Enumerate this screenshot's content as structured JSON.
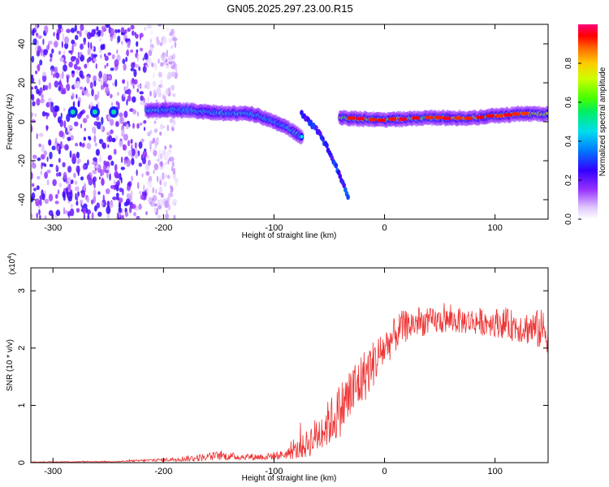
{
  "title": "GN05.2025.297.23.00.R15",
  "chart_data": [
    {
      "type": "heatmap",
      "title": "GN05.2025.297.23.00.R15",
      "xlabel": "Height of straight line (km)",
      "ylabel": "Frequency (Hz)",
      "xlim": [
        -320,
        148
      ],
      "ylim": [
        -50,
        50
      ],
      "xticks": [
        -300,
        -200,
        -100,
        0,
        100
      ],
      "xtick_labels": [
        "-300",
        "-200",
        "-100",
        "0",
        "100"
      ],
      "yticks": [
        -40,
        -20,
        0,
        20,
        40
      ],
      "ytick_labels": [
        "-40",
        "-20",
        "0",
        "20",
        "40"
      ],
      "colorbar": {
        "label": "Normalized spectral amplitude",
        "range": [
          0,
          1
        ],
        "ticks": [
          0.0,
          0.2,
          0.4,
          0.6,
          0.8
        ],
        "tick_labels": [
          "0.0",
          "0.2",
          "0.4",
          "0.6",
          "0.8"
        ]
      },
      "features": [
        {
          "name": "noise-region",
          "x_range": [
            -320,
            -200
          ],
          "y_range": [
            -50,
            50
          ],
          "amplitude": 0.15
        },
        {
          "name": "main-track-left",
          "points": [
            [
              -215,
              6
            ],
            [
              -180,
              6
            ],
            [
              -150,
              4.5
            ],
            [
              -120,
              4
            ],
            [
              -100,
              0
            ],
            [
              -85,
              -4
            ],
            [
              -75,
              -8
            ]
          ],
          "amplitude": 0.45
        },
        {
          "name": "main-track-right",
          "points": [
            [
              -40,
              2
            ],
            [
              0,
              1
            ],
            [
              40,
              2
            ],
            [
              80,
              2
            ],
            [
              120,
              4
            ],
            [
              148,
              4
            ]
          ],
          "amplitude": 0.75
        },
        {
          "name": "dispersive-branch",
          "points": [
            [
              -75,
              4
            ],
            [
              -60,
              -5
            ],
            [
              -50,
              -15
            ],
            [
              -40,
              -28
            ],
            [
              -32,
              -40
            ]
          ],
          "amplitude": 0.3
        }
      ]
    },
    {
      "type": "line",
      "title": "",
      "xlabel": "Height of straight line (km)",
      "ylabel": "SNR (10 * v/v)",
      "y_multiplier_label": "(x10",
      "y_multiplier_exp": "4",
      "xlim": [
        -320,
        148
      ],
      "ylim": [
        0,
        3.4
      ],
      "xticks": [
        -300,
        -200,
        -100,
        0,
        100
      ],
      "xtick_labels": [
        "-300",
        "-200",
        "-100",
        "0",
        "100"
      ],
      "yticks": [
        0,
        1,
        2,
        3
      ],
      "ytick_labels": [
        "0",
        "1",
        "2",
        "3"
      ],
      "color": "#ee3333",
      "series": [
        {
          "name": "SNR",
          "envelope_x": [
            -320,
            -240,
            -200,
            -170,
            -150,
            -130,
            -110,
            -90,
            -75,
            -60,
            -45,
            -30,
            -15,
            0,
            15,
            30,
            60,
            100,
            130,
            148
          ],
          "envelope_y": [
            0.01,
            0.02,
            0.05,
            0.08,
            0.12,
            0.1,
            0.1,
            0.14,
            0.25,
            0.5,
            0.8,
            1.2,
            1.6,
            2.0,
            2.35,
            2.45,
            2.48,
            2.45,
            2.35,
            2.3
          ],
          "spread_y": [
            0.005,
            0.01,
            0.03,
            0.06,
            0.08,
            0.06,
            0.06,
            0.08,
            0.2,
            0.35,
            0.45,
            0.55,
            0.45,
            0.35,
            0.3,
            0.25,
            0.22,
            0.25,
            0.3,
            0.4
          ]
        }
      ]
    }
  ]
}
